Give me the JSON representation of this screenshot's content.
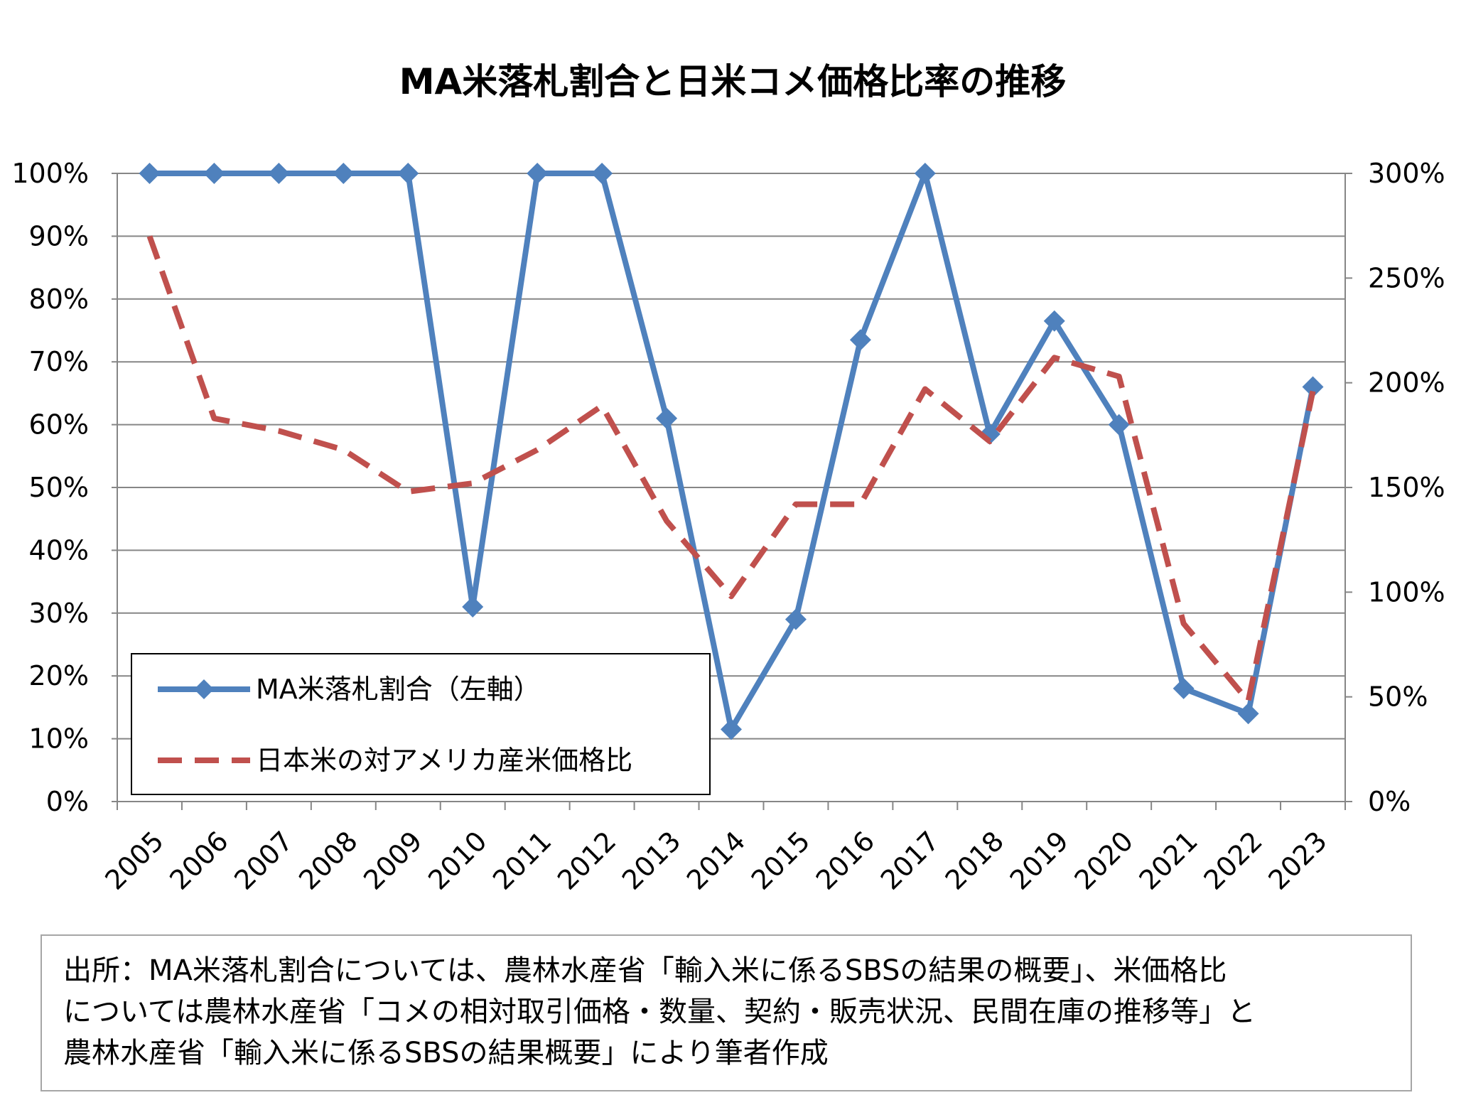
{
  "chart_data": {
    "type": "line",
    "title": "MA米落札割合と日米コメ価格比率の推移",
    "categories": [
      "2005",
      "2006",
      "2007",
      "2008",
      "2009",
      "2010",
      "2011",
      "2012",
      "2013",
      "2014",
      "2015",
      "2016",
      "2017",
      "2018",
      "2019",
      "2020",
      "2021",
      "2022",
      "2023"
    ],
    "series": [
      {
        "name": "MA米落札割合（左軸）",
        "axis": "left",
        "style": "solid",
        "marker": "diamond",
        "color": "#4f81bd",
        "values": [
          1.0,
          1.0,
          1.0,
          1.0,
          1.0,
          0.31,
          1.0,
          1.0,
          0.61,
          0.115,
          0.29,
          0.735,
          1.0,
          0.585,
          0.765,
          0.6,
          0.18,
          0.14,
          0.66
        ]
      },
      {
        "name": "日本米の対アメリカ産米価格比",
        "axis": "right",
        "style": "dashed",
        "marker": "none",
        "color": "#c0504d",
        "values": [
          2.7,
          1.83,
          1.77,
          1.68,
          1.48,
          1.52,
          1.68,
          1.89,
          1.34,
          0.98,
          1.42,
          1.42,
          1.97,
          1.72,
          2.12,
          2.03,
          0.85,
          0.48,
          1.96
        ]
      }
    ],
    "y_left": {
      "ticks": [
        "0%",
        "10%",
        "20%",
        "30%",
        "40%",
        "50%",
        "60%",
        "70%",
        "80%",
        "90%",
        "100%"
      ],
      "range": [
        0,
        1.0
      ]
    },
    "y_right": {
      "ticks": [
        "0%",
        "50%",
        "100%",
        "150%",
        "200%",
        "250%",
        "300%"
      ],
      "range": [
        0,
        3.0
      ]
    },
    "grid": true,
    "legend_position": "bottom-left"
  },
  "source": {
    "lines": [
      "出所：MA米落札割合については、農林水産省「輸入米に係るSBSの結果の概要」、米価格比",
      "については農林水産省「コメの相対取引価格・数量、契約・販売状況、民間在庫の推移等」と",
      "農林水産省「輸入米に係るSBSの結果概要」により筆者作成"
    ]
  }
}
